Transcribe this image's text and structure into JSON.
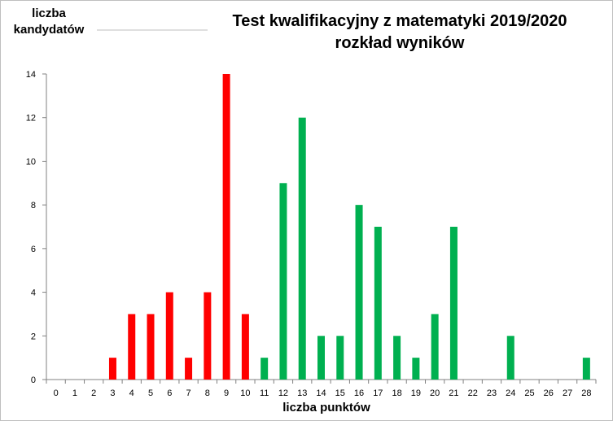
{
  "chart_data": {
    "type": "bar",
    "title": [
      "Test kwalifikacyjny  z matematyki 2019/2020",
      "rozkład wyników"
    ],
    "ylabel": [
      "liczba",
      "kandydatów"
    ],
    "xlabel": "liczba punktów",
    "ylim": [
      0,
      14
    ],
    "yticks": [
      0,
      2,
      4,
      6,
      8,
      10,
      12,
      14
    ],
    "categories": [
      0,
      1,
      2,
      3,
      4,
      5,
      6,
      7,
      8,
      9,
      10,
      11,
      12,
      13,
      14,
      15,
      16,
      17,
      18,
      19,
      20,
      21,
      22,
      23,
      24,
      25,
      26,
      27,
      28
    ],
    "series": [
      {
        "color": "#ff0000",
        "points": [
          {
            "x": 3,
            "y": 1
          },
          {
            "x": 4,
            "y": 3
          },
          {
            "x": 5,
            "y": 3
          },
          {
            "x": 6,
            "y": 4
          },
          {
            "x": 7,
            "y": 1
          },
          {
            "x": 8,
            "y": 4
          },
          {
            "x": 9,
            "y": 14
          },
          {
            "x": 10,
            "y": 3
          }
        ]
      },
      {
        "color": "#00b050",
        "points": [
          {
            "x": 11,
            "y": 1
          },
          {
            "x": 12,
            "y": 9
          },
          {
            "x": 13,
            "y": 12
          },
          {
            "x": 14,
            "y": 2
          },
          {
            "x": 15,
            "y": 2
          },
          {
            "x": 16,
            "y": 8
          },
          {
            "x": 17,
            "y": 7
          },
          {
            "x": 18,
            "y": 2
          },
          {
            "x": 19,
            "y": 1
          },
          {
            "x": 20,
            "y": 3
          },
          {
            "x": 21,
            "y": 7
          },
          {
            "x": 24,
            "y": 2
          },
          {
            "x": 28,
            "y": 1
          }
        ]
      }
    ],
    "grid": false,
    "legend": "none"
  }
}
